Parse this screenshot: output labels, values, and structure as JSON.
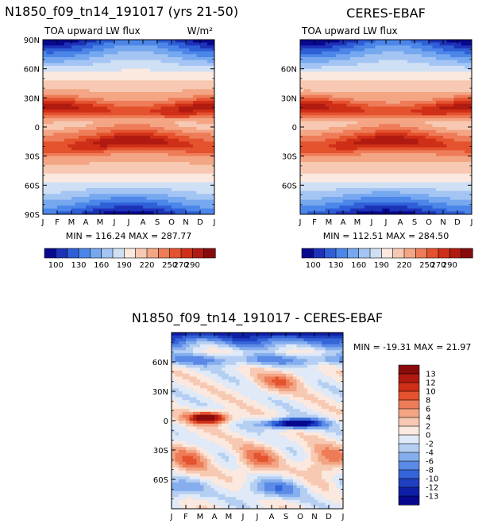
{
  "chart_data": [
    {
      "type": "heatmap",
      "id": "model",
      "title": "N1850_f09_tn14_191017 (yrs 21-50)",
      "subtitle_left": "TOA upward LW flux",
      "units": "W/m²",
      "x_ticks": [
        "J",
        "F",
        "M",
        "A",
        "M",
        "J",
        "J",
        "A",
        "S",
        "O",
        "N",
        "D",
        "J"
      ],
      "y_ticks": [
        "90N",
        "60N",
        "30N",
        "0",
        "30S",
        "60S",
        "90S"
      ],
      "ylim": [
        -90,
        90
      ],
      "stats": "MIN = 116.24  MAX = 287.77",
      "min": 116.24,
      "max": 287.77
    },
    {
      "type": "heatmap",
      "id": "obs",
      "title": "CERES-EBAF",
      "subtitle_left": "TOA upward LW flux",
      "y_ticks": [
        "60N",
        "30N",
        "0",
        "30S",
        "60S"
      ],
      "x_ticks": [
        "J",
        "F",
        "M",
        "A",
        "M",
        "J",
        "J",
        "A",
        "S",
        "O",
        "N",
        "D",
        "J"
      ],
      "ylim": [
        -90,
        90
      ],
      "stats": "MIN = 112.51  MAX = 284.50",
      "min": 112.51,
      "max": 284.5
    },
    {
      "type": "heatmap",
      "id": "diff",
      "title": "N1850_f09_tn14_191017 - CERES-EBAF",
      "y_ticks": [
        "60N",
        "30N",
        "0",
        "30S",
        "60S"
      ],
      "x_ticks": [
        "J",
        "F",
        "M",
        "A",
        "M",
        "J",
        "J",
        "A",
        "S",
        "O",
        "N",
        "D",
        "J"
      ],
      "ylim": [
        -90,
        90
      ],
      "stats": "MIN = -19.31  MAX =  21.97",
      "min": -19.31,
      "max": 21.97
    }
  ],
  "colorbar_main": {
    "labels": [
      "100",
      "130",
      "160",
      "190",
      "220",
      "250",
      "270",
      "290"
    ],
    "colors": [
      "#08088f",
      "#1d32b8",
      "#2f5fd6",
      "#4c86e8",
      "#76a8f0",
      "#a4c5f3",
      "#cfe0f5",
      "#fbe8de",
      "#f7c9b2",
      "#f3a584",
      "#ee7c58",
      "#e4522e",
      "#cf2e17",
      "#b01a10",
      "#870b0b"
    ]
  },
  "colorbar_diff": {
    "labels": [
      "13",
      "12",
      "10",
      "8",
      "6",
      "4",
      "2",
      "0",
      "-2",
      "-4",
      "-6",
      "-8",
      "-10",
      "-12",
      "-13"
    ],
    "colors": [
      "#8a0b0b",
      "#b01a10",
      "#cf2e17",
      "#e4522e",
      "#ee7c58",
      "#f3a584",
      "#f7c9b2",
      "#fbe8de",
      "#dfe9f7",
      "#b5cff3",
      "#86aeee",
      "#5b8ae6",
      "#3565d8",
      "#1f3fc0",
      "#0f1fa8",
      "#08088f"
    ]
  }
}
